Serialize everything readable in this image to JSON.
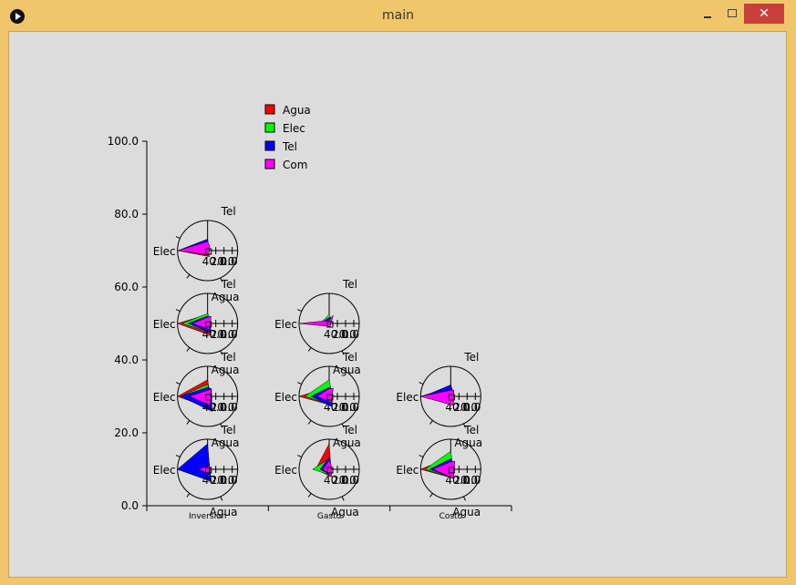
{
  "window": {
    "title": "main",
    "minimize_glyph": "",
    "maximize_glyph": "",
    "close_glyph": "✕"
  },
  "chart_data": {
    "type": "scatter",
    "title": "",
    "xlabel": "",
    "ylabel": "",
    "ylim": [
      0,
      100
    ],
    "y_ticks": [
      "0.0",
      "20.0",
      "40.0",
      "60.0",
      "80.0",
      "100.0"
    ],
    "categories": [
      "Inversion",
      "Gasto",
      "Costo"
    ],
    "legend": {
      "position": "top",
      "entries": [
        {
          "name": "Agua",
          "color": "#ff0000"
        },
        {
          "name": "Elec",
          "color": "#00ff00"
        },
        {
          "name": "Tel",
          "color": "#0000ff"
        },
        {
          "name": "Com",
          "color": "#ff00ff"
        }
      ]
    },
    "glyph_labels": {
      "top": "Tel",
      "left": "Elec",
      "bottom": "Agua",
      "ticks": "40.0",
      "ticks2": "20.0",
      "ticks3": "0.0"
    },
    "radar_glyphs": [
      {
        "x": "Inversion",
        "y": 70,
        "show_bottom_label": false,
        "polys": [
          {
            "color": "#ff0000",
            "r": [
              0.3,
              0.98,
              0.2,
              0.2
            ]
          },
          {
            "color": "#00ff00",
            "r": [
              0.38,
              0.98,
              0.14,
              0.2
            ]
          },
          {
            "color": "#0000ff",
            "r": [
              0.38,
              0.98,
              0.14,
              0.2
            ]
          },
          {
            "color": "#ff00ff",
            "r": [
              0.3,
              0.98,
              0.14,
              0.5
            ]
          }
        ]
      },
      {
        "x": "Inversion",
        "y": 50,
        "show_bottom_label": true,
        "polys": [
          {
            "color": "#ff0000",
            "r": [
              0.3,
              1.0,
              0.4,
              0.5
            ]
          },
          {
            "color": "#00ff00",
            "r": [
              0.33,
              0.85,
              0.3,
              0.6
            ]
          },
          {
            "color": "#0000ff",
            "r": [
              0.25,
              0.65,
              0.3,
              0.55
            ]
          },
          {
            "color": "#ff00ff",
            "r": [
              0.2,
              0.5,
              0.2,
              0.8
            ]
          }
        ]
      },
      {
        "x": "Inversion",
        "y": 30,
        "show_bottom_label": true,
        "polys": [
          {
            "color": "#ff0000",
            "r": [
              0.55,
              1.0,
              0.4,
              0.45
            ]
          },
          {
            "color": "#00ff00",
            "r": [
              0.4,
              0.9,
              0.4,
              0.5
            ]
          },
          {
            "color": "#0000ff",
            "r": [
              0.3,
              0.9,
              0.5,
              0.85
            ]
          },
          {
            "color": "#ff00ff",
            "r": [
              0.2,
              0.6,
              0.3,
              0.8
            ]
          }
        ]
      },
      {
        "x": "Inversion",
        "y": 10,
        "show_bottom_label": true,
        "polys": [
          {
            "color": "#ff0000",
            "r": [
              0.6,
              1.0,
              0.4,
              0.4
            ]
          },
          {
            "color": "#00ff00",
            "r": [
              0.6,
              1.0,
              0.4,
              0.4
            ]
          },
          {
            "color": "#0000ff",
            "r": [
              0.85,
              1.0,
              0.4,
              0.4
            ]
          },
          {
            "color": "#ff00ff",
            "r": [
              0.1,
              0.3,
              0.15,
              0.45
            ]
          }
        ]
      },
      {
        "x": "Gasto",
        "y": 50,
        "show_bottom_label": false,
        "polys": [
          {
            "color": "#ff0000",
            "r": [
              0.1,
              0.3,
              0.1,
              0.5
            ]
          },
          {
            "color": "#00ff00",
            "r": [
              0.3,
              0.3,
              0.1,
              0.5
            ]
          },
          {
            "color": "#0000ff",
            "r": [
              0.2,
              0.3,
              0.1,
              0.6
            ]
          },
          {
            "color": "#ff00ff",
            "r": [
              0.1,
              1.0,
              0.1,
              0.9
            ]
          }
        ]
      },
      {
        "x": "Gasto",
        "y": 30,
        "show_bottom_label": true,
        "polys": [
          {
            "color": "#ff0000",
            "r": [
              0.3,
              1.0,
              0.3,
              0.5
            ]
          },
          {
            "color": "#00ff00",
            "r": [
              0.55,
              0.8,
              0.3,
              0.5
            ]
          },
          {
            "color": "#0000ff",
            "r": [
              0.3,
              0.6,
              0.35,
              0.55
            ]
          },
          {
            "color": "#ff00ff",
            "r": [
              0.25,
              0.4,
              0.2,
              0.9
            ]
          }
        ]
      },
      {
        "x": "Gasto",
        "y": 10,
        "show_bottom_label": true,
        "polys": [
          {
            "color": "#ff0000",
            "r": [
              0.85,
              0.45,
              0.25,
              0.35
            ]
          },
          {
            "color": "#00ff00",
            "r": [
              0.35,
              0.55,
              0.2,
              0.35
            ]
          },
          {
            "color": "#0000ff",
            "r": [
              0.4,
              0.3,
              0.2,
              0.4
            ]
          },
          {
            "color": "#ff00ff",
            "r": [
              0.3,
              0.2,
              0.25,
              0.45
            ]
          }
        ]
      },
      {
        "x": "Costo",
        "y": 30,
        "show_bottom_label": false,
        "polys": [
          {
            "color": "#ff0000",
            "r": [
              0.3,
              1.0,
              0.1,
              0.5
            ]
          },
          {
            "color": "#00ff00",
            "r": [
              0.38,
              0.9,
              0.1,
              0.5
            ]
          },
          {
            "color": "#0000ff",
            "r": [
              0.38,
              0.9,
              0.1,
              0.5
            ]
          },
          {
            "color": "#ff00ff",
            "r": [
              0.2,
              1.0,
              0.3,
              0.7
            ]
          }
        ]
      },
      {
        "x": "Costo",
        "y": 10,
        "show_bottom_label": true,
        "polys": [
          {
            "color": "#ff0000",
            "r": [
              0.4,
              1.0,
              0.3,
              0.4
            ]
          },
          {
            "color": "#00ff00",
            "r": [
              0.6,
              0.85,
              0.3,
              0.45
            ]
          },
          {
            "color": "#0000ff",
            "r": [
              0.35,
              0.7,
              0.3,
              0.55
            ]
          },
          {
            "color": "#ff00ff",
            "r": [
              0.25,
              0.6,
              0.3,
              0.9
            ]
          }
        ]
      }
    ]
  }
}
